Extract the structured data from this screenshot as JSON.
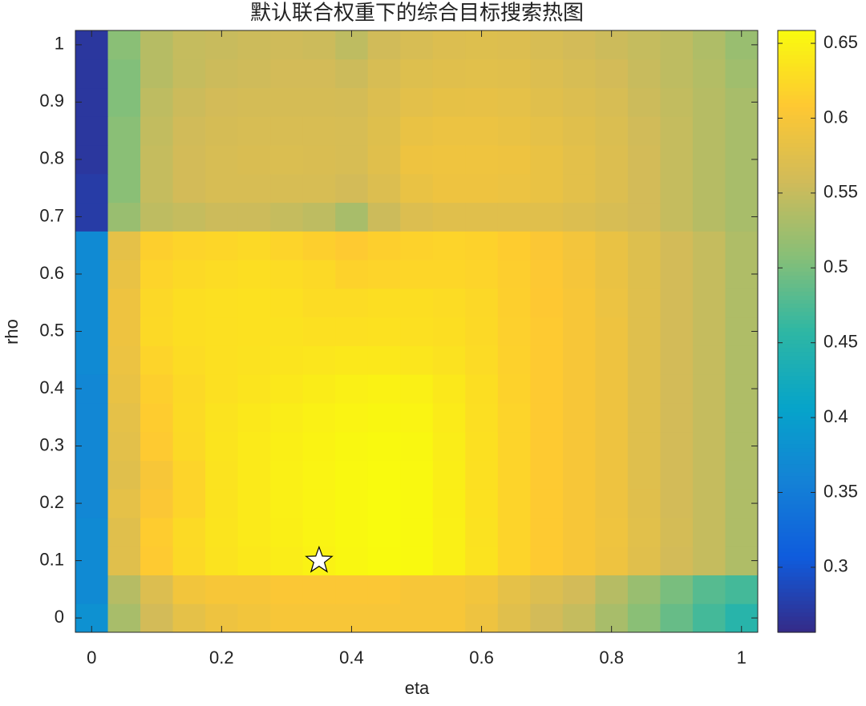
{
  "chart_data": {
    "type": "heatmap",
    "title": "默认联合权重下的综合目标搜索热图",
    "xlabel": "eta",
    "ylabel": "rho",
    "x": [
      0,
      0.05,
      0.1,
      0.15,
      0.2,
      0.25,
      0.3,
      0.35,
      0.4,
      0.45,
      0.5,
      0.55,
      0.6,
      0.65,
      0.7,
      0.75,
      0.8,
      0.85,
      0.9,
      0.95,
      1
    ],
    "y": [
      0,
      0.05,
      0.1,
      0.15,
      0.2,
      0.25,
      0.3,
      0.35,
      0.4,
      0.45,
      0.5,
      0.55,
      0.6,
      0.65,
      0.7,
      0.75,
      0.8,
      0.85,
      0.9,
      0.95,
      1
    ],
    "z": [
      [
        0.38,
        0.53,
        0.56,
        0.58,
        0.59,
        0.595,
        0.6,
        0.6,
        0.6,
        0.6,
        0.6,
        0.6,
        0.59,
        0.575,
        0.56,
        0.55,
        0.53,
        0.51,
        0.49,
        0.47,
        0.45
      ],
      [
        0.37,
        0.54,
        0.57,
        0.595,
        0.6,
        0.6,
        0.605,
        0.605,
        0.605,
        0.605,
        0.6,
        0.6,
        0.595,
        0.58,
        0.57,
        0.56,
        0.54,
        0.52,
        0.5,
        0.48,
        0.47
      ],
      [
        0.37,
        0.575,
        0.61,
        0.625,
        0.635,
        0.64,
        0.645,
        0.65,
        0.655,
        0.658,
        0.657,
        0.648,
        0.635,
        0.62,
        0.61,
        0.6,
        0.59,
        0.575,
        0.56,
        0.55,
        0.535
      ],
      [
        0.37,
        0.575,
        0.612,
        0.626,
        0.636,
        0.642,
        0.647,
        0.652,
        0.656,
        0.659,
        0.657,
        0.648,
        0.634,
        0.62,
        0.61,
        0.6,
        0.592,
        0.576,
        0.562,
        0.55,
        0.535
      ],
      [
        0.365,
        0.58,
        0.605,
        0.62,
        0.635,
        0.642,
        0.648,
        0.652,
        0.656,
        0.659,
        0.657,
        0.647,
        0.633,
        0.62,
        0.61,
        0.6,
        0.59,
        0.575,
        0.56,
        0.55,
        0.535
      ],
      [
        0.365,
        0.575,
        0.6,
        0.62,
        0.635,
        0.642,
        0.648,
        0.652,
        0.656,
        0.658,
        0.656,
        0.646,
        0.632,
        0.62,
        0.61,
        0.6,
        0.59,
        0.574,
        0.56,
        0.55,
        0.535
      ],
      [
        0.365,
        0.578,
        0.61,
        0.625,
        0.636,
        0.642,
        0.647,
        0.651,
        0.655,
        0.657,
        0.655,
        0.645,
        0.632,
        0.62,
        0.61,
        0.6,
        0.59,
        0.574,
        0.56,
        0.55,
        0.535
      ],
      [
        0.365,
        0.58,
        0.612,
        0.626,
        0.635,
        0.64,
        0.645,
        0.649,
        0.652,
        0.654,
        0.652,
        0.643,
        0.631,
        0.62,
        0.61,
        0.6,
        0.59,
        0.574,
        0.56,
        0.55,
        0.535
      ],
      [
        0.365,
        0.585,
        0.615,
        0.625,
        0.632,
        0.636,
        0.64,
        0.644,
        0.648,
        0.65,
        0.648,
        0.64,
        0.63,
        0.618,
        0.61,
        0.6,
        0.59,
        0.574,
        0.56,
        0.55,
        0.535
      ],
      [
        0.37,
        0.588,
        0.62,
        0.628,
        0.632,
        0.634,
        0.636,
        0.638,
        0.64,
        0.64,
        0.638,
        0.634,
        0.627,
        0.617,
        0.61,
        0.6,
        0.59,
        0.574,
        0.56,
        0.55,
        0.535
      ],
      [
        0.37,
        0.59,
        0.625,
        0.63,
        0.632,
        0.633,
        0.634,
        0.632,
        0.632,
        0.633,
        0.632,
        0.63,
        0.625,
        0.616,
        0.61,
        0.6,
        0.59,
        0.574,
        0.56,
        0.55,
        0.535
      ],
      [
        0.37,
        0.59,
        0.624,
        0.63,
        0.632,
        0.633,
        0.632,
        0.628,
        0.628,
        0.63,
        0.63,
        0.628,
        0.624,
        0.615,
        0.608,
        0.6,
        0.588,
        0.574,
        0.56,
        0.55,
        0.535
      ],
      [
        0.37,
        0.585,
        0.62,
        0.625,
        0.628,
        0.63,
        0.628,
        0.625,
        0.618,
        0.62,
        0.622,
        0.622,
        0.62,
        0.614,
        0.607,
        0.598,
        0.586,
        0.573,
        0.56,
        0.55,
        0.535
      ],
      [
        0.37,
        0.58,
        0.615,
        0.62,
        0.622,
        0.625,
        0.62,
        0.615,
        0.61,
        0.615,
        0.618,
        0.62,
        0.618,
        0.612,
        0.605,
        0.596,
        0.585,
        0.572,
        0.56,
        0.55,
        0.535
      ],
      [
        0.275,
        0.52,
        0.545,
        0.55,
        0.555,
        0.555,
        0.55,
        0.545,
        0.53,
        0.555,
        0.57,
        0.575,
        0.575,
        0.575,
        0.575,
        0.57,
        0.565,
        0.56,
        0.55,
        0.54,
        0.53
      ],
      [
        0.275,
        0.51,
        0.55,
        0.56,
        0.565,
        0.565,
        0.565,
        0.565,
        0.56,
        0.57,
        0.585,
        0.59,
        0.59,
        0.588,
        0.585,
        0.578,
        0.57,
        0.56,
        0.55,
        0.54,
        0.53
      ],
      [
        0.27,
        0.51,
        0.55,
        0.56,
        0.565,
        0.567,
        0.568,
        0.567,
        0.565,
        0.575,
        0.59,
        0.592,
        0.592,
        0.59,
        0.585,
        0.578,
        0.57,
        0.56,
        0.55,
        0.54,
        0.53
      ],
      [
        0.27,
        0.51,
        0.548,
        0.558,
        0.563,
        0.565,
        0.566,
        0.566,
        0.565,
        0.573,
        0.585,
        0.588,
        0.588,
        0.585,
        0.58,
        0.575,
        0.568,
        0.558,
        0.55,
        0.54,
        0.53
      ],
      [
        0.27,
        0.505,
        0.545,
        0.555,
        0.56,
        0.562,
        0.563,
        0.563,
        0.562,
        0.57,
        0.578,
        0.582,
        0.583,
        0.58,
        0.575,
        0.57,
        0.565,
        0.555,
        0.548,
        0.54,
        0.53
      ],
      [
        0.27,
        0.505,
        0.54,
        0.55,
        0.555,
        0.557,
        0.56,
        0.56,
        0.555,
        0.565,
        0.572,
        0.575,
        0.576,
        0.575,
        0.57,
        0.565,
        0.56,
        0.552,
        0.545,
        0.538,
        0.525
      ],
      [
        0.27,
        0.51,
        0.54,
        0.55,
        0.552,
        0.555,
        0.557,
        0.555,
        0.545,
        0.558,
        0.565,
        0.57,
        0.572,
        0.57,
        0.565,
        0.56,
        0.555,
        0.55,
        0.545,
        0.535,
        0.52
      ]
    ],
    "xlim": [
      -0.025,
      1.025
    ],
    "ylim": [
      -0.025,
      1.025
    ],
    "xticks": [
      0,
      0.2,
      0.4,
      0.6,
      0.8,
      1
    ],
    "yticks": [
      0,
      0.1,
      0.2,
      0.3,
      0.4,
      0.5,
      0.6,
      0.7,
      0.8,
      0.9,
      1
    ],
    "clim": [
      0.2566,
      0.6586
    ],
    "cticks": [
      0.3,
      0.35,
      0.4,
      0.45,
      0.5,
      0.55,
      0.6,
      0.65
    ],
    "colormap": [
      "#352a87",
      "#0f5cdd",
      "#1481d6",
      "#06a4ca",
      "#2eb7a4",
      "#87bf77",
      "#d1bb59",
      "#fec832",
      "#f9fb0e"
    ],
    "marker": {
      "x": 0.35,
      "y": 0.1,
      "color": "#ffffff"
    }
  }
}
